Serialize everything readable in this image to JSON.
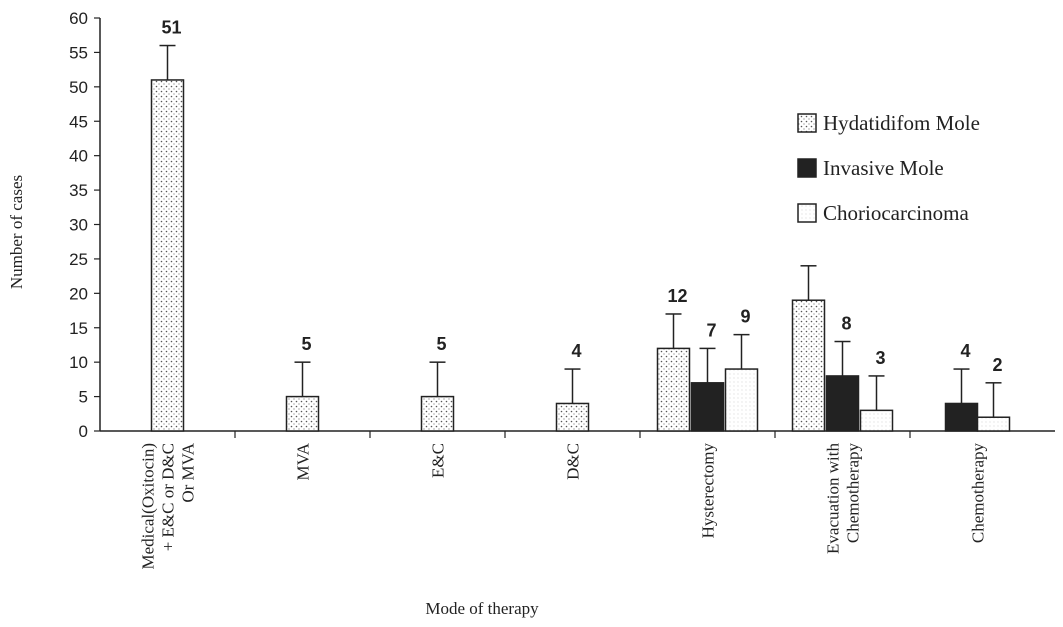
{
  "chart_data": {
    "type": "bar",
    "title": "",
    "xlabel": "Mode of therapy",
    "ylabel": "Number of cases",
    "ylim": [
      0,
      60
    ],
    "yticks": [
      "0",
      "5",
      "10",
      "15",
      "20",
      "25",
      "30",
      "35",
      "40",
      "45",
      "50",
      "55",
      "60"
    ],
    "grid": false,
    "legend_position": "right",
    "categories": [
      [
        "Medical(Oxitocin)",
        "+ E&C  or  D&C",
        "Or MVA"
      ],
      [
        "MVA"
      ],
      [
        "E&C"
      ],
      [
        "D&C"
      ],
      [
        "Hysterectomy"
      ],
      [
        "Evacuation with",
        "Chemotherapy"
      ],
      [
        "Chemotherapy"
      ]
    ],
    "series": [
      {
        "name": "Hydatidifom Mole",
        "pattern": "dots",
        "values": [
          51,
          5,
          5,
          4,
          12,
          19,
          null
        ],
        "error": [
          5,
          5,
          5,
          5,
          5,
          5,
          null
        ],
        "labels": [
          "51",
          "5",
          "5",
          "4",
          "12",
          "",
          ""
        ]
      },
      {
        "name": "Invasive Mole",
        "pattern": "solid",
        "values": [
          null,
          null,
          null,
          null,
          7,
          8,
          4
        ],
        "error": [
          null,
          null,
          null,
          null,
          5,
          5,
          5
        ],
        "labels": [
          "",
          "",
          "",
          "",
          "7",
          "8",
          "4"
        ]
      },
      {
        "name": "Choriocarcinoma",
        "pattern": "light",
        "values": [
          null,
          null,
          null,
          null,
          9,
          3,
          2
        ],
        "error": [
          null,
          null,
          null,
          null,
          5,
          5,
          5
        ],
        "labels": [
          "",
          "",
          "",
          "",
          "9",
          "3",
          "2"
        ]
      }
    ],
    "colors": {
      "axis": "#222222",
      "solid": "#222222",
      "dots_bg": "#ffffff",
      "dots_fg": "#555555",
      "light_bg": "#ffffff"
    }
  }
}
